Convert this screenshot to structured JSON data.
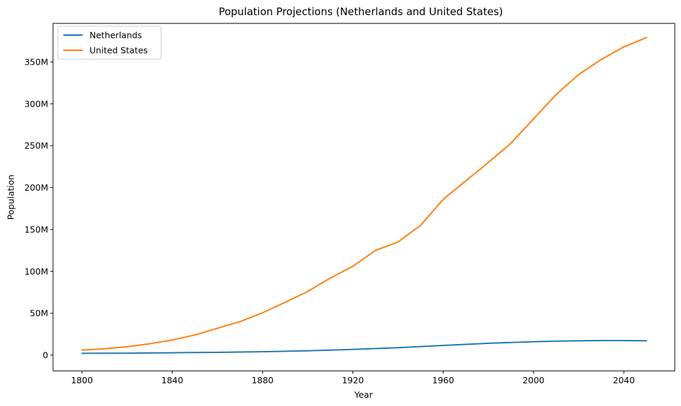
{
  "chart_data": {
    "type": "line",
    "title": "Population Projections (Netherlands and United States)",
    "xlabel": "Year",
    "ylabel": "Population",
    "xlim": [
      1800,
      2050
    ],
    "ylim": [
      0,
      380000000
    ],
    "x_ticks": [
      1800,
      1840,
      1880,
      1920,
      1960,
      2000,
      2040
    ],
    "x_tick_labels": [
      "1800",
      "1840",
      "1880",
      "1920",
      "1960",
      "2000",
      "2040"
    ],
    "y_ticks": [
      0,
      50000000,
      100000000,
      150000000,
      200000000,
      250000000,
      300000000,
      350000000
    ],
    "y_tick_labels": [
      "0",
      "50M",
      "100M",
      "150M",
      "200M",
      "250M",
      "300M",
      "350M"
    ],
    "grid": false,
    "legend": {
      "position": "top-left",
      "entries": [
        "Netherlands",
        "United States"
      ]
    },
    "series": [
      {
        "name": "Netherlands",
        "color": "#1f77b4",
        "x": [
          1800,
          1820,
          1840,
          1860,
          1880,
          1900,
          1920,
          1940,
          1960,
          1980,
          2000,
          2010,
          2020,
          2030,
          2040,
          2050
        ],
        "y": [
          2100000,
          2300000,
          2800000,
          3300000,
          4000000,
          5100000,
          6800000,
          8800000,
          11500000,
          14100000,
          15900000,
          16600000,
          17100000,
          17400000,
          17400000,
          17000000
        ]
      },
      {
        "name": "United States",
        "color": "#ff7f0e",
        "x": [
          1800,
          1810,
          1820,
          1830,
          1840,
          1850,
          1860,
          1870,
          1880,
          1890,
          1900,
          1910,
          1920,
          1930,
          1940,
          1950,
          1960,
          1970,
          1980,
          1990,
          2000,
          2010,
          2020,
          2030,
          2040,
          2050
        ],
        "y": [
          6000000,
          7500000,
          10000000,
          13500000,
          18000000,
          24000000,
          32000000,
          40000000,
          50500000,
          63000000,
          76000000,
          92000000,
          106000000,
          125000000,
          135000000,
          155000000,
          186000000,
          208000000,
          230000000,
          253000000,
          282000000,
          311000000,
          335000000,
          353000000,
          368000000,
          379000000
        ]
      }
    ]
  }
}
